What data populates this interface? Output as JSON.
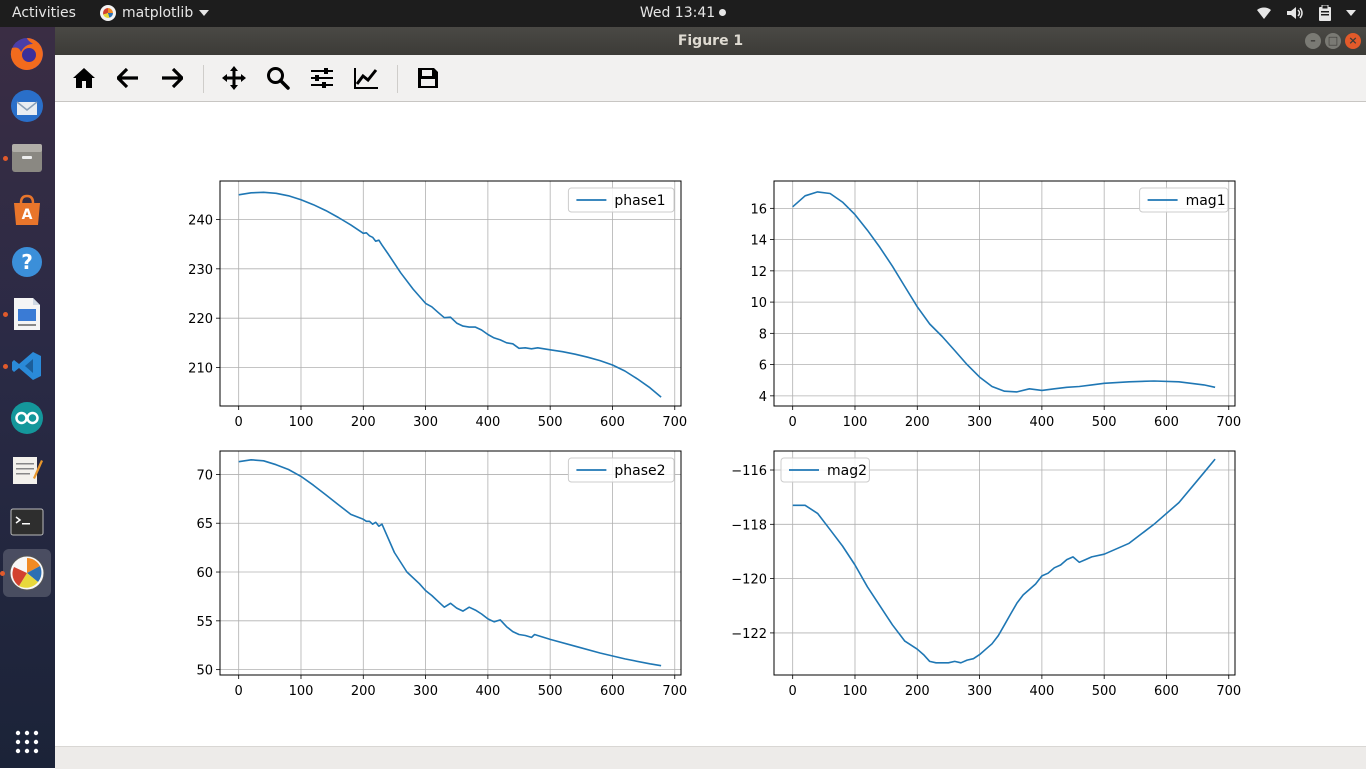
{
  "topbar": {
    "activities": "Activities",
    "app_name": "matplotlib",
    "clock": "Wed 13:41"
  },
  "launcher": {
    "apps": [
      "firefox-icon",
      "thunderbird-icon",
      "files-icon",
      "software-center-icon",
      "help-icon",
      "writer-icon",
      "vscode-icon",
      "arduino-icon",
      "text-editor-icon",
      "terminal-icon",
      "matplotlib-icon",
      "app-grid-icon"
    ]
  },
  "window": {
    "title": "Figure 1"
  },
  "toolbar": {
    "buttons": [
      "home",
      "back",
      "forward",
      "pan",
      "zoom",
      "subplots",
      "customize",
      "save"
    ]
  },
  "colors": {
    "line": "#1f77b4",
    "grid": "#b0b0b0",
    "topbar": "#1d1d1d",
    "titlebar": "#3c3b37"
  },
  "chart_data": [
    {
      "type": "line",
      "legend": "upper right",
      "grid": true,
      "xlim": [
        -30,
        710
      ],
      "ylim": [
        202.2,
        247.8
      ],
      "xticks": [
        0,
        100,
        200,
        300,
        400,
        500,
        600,
        700
      ],
      "yticks": [
        210,
        220,
        230,
        240
      ],
      "series": [
        {
          "name": "phase1",
          "x": [
            0,
            20,
            40,
            60,
            80,
            100,
            120,
            140,
            160,
            180,
            200,
            205,
            210,
            215,
            220,
            225,
            230,
            240,
            260,
            280,
            300,
            310,
            320,
            330,
            340,
            350,
            360,
            370,
            380,
            390,
            400,
            410,
            420,
            430,
            440,
            450,
            460,
            470,
            480,
            500,
            520,
            540,
            560,
            580,
            600,
            620,
            640,
            660,
            678
          ],
          "y": [
            245,
            245.4,
            245.5,
            245.3,
            244.8,
            244.0,
            243.0,
            241.8,
            240.4,
            238.9,
            237.2,
            237.3,
            236.7,
            236.4,
            235.6,
            235.8,
            234.8,
            233.0,
            229.2,
            225.9,
            223.0,
            222.3,
            221.2,
            220.1,
            220.2,
            219.0,
            218.4,
            218.2,
            218.2,
            217.6,
            216.7,
            216.0,
            215.6,
            215.0,
            214.8,
            213.9,
            214.0,
            213.8,
            214.0,
            213.6,
            213.2,
            212.7,
            212.1,
            211.4,
            210.5,
            209.3,
            207.7,
            205.9,
            204.0
          ]
        }
      ]
    },
    {
      "type": "line",
      "legend": "upper right",
      "grid": true,
      "xlim": [
        -30,
        710
      ],
      "ylim": [
        3.35,
        17.75
      ],
      "xticks": [
        0,
        100,
        200,
        300,
        400,
        500,
        600,
        700
      ],
      "yticks": [
        4,
        6,
        8,
        10,
        12,
        14,
        16
      ],
      "series": [
        {
          "name": "mag1",
          "x": [
            0,
            20,
            40,
            60,
            80,
            100,
            120,
            140,
            160,
            180,
            200,
            220,
            240,
            260,
            280,
            300,
            320,
            340,
            360,
            380,
            400,
            420,
            440,
            460,
            480,
            500,
            540,
            580,
            620,
            660,
            678
          ],
          "y": [
            16.1,
            16.8,
            17.05,
            16.95,
            16.4,
            15.6,
            14.6,
            13.5,
            12.3,
            11.0,
            9.7,
            8.6,
            7.8,
            6.9,
            6.0,
            5.2,
            4.6,
            4.3,
            4.25,
            4.45,
            4.35,
            4.45,
            4.55,
            4.6,
            4.7,
            4.8,
            4.9,
            4.95,
            4.9,
            4.7,
            4.55
          ]
        }
      ]
    },
    {
      "type": "line",
      "legend": "upper right",
      "grid": true,
      "xlim": [
        -30,
        710
      ],
      "ylim": [
        49.45,
        72.4
      ],
      "xticks": [
        0,
        100,
        200,
        300,
        400,
        500,
        600,
        700
      ],
      "yticks": [
        50,
        55,
        60,
        65,
        70
      ],
      "series": [
        {
          "name": "phase2",
          "x": [
            0,
            20,
            40,
            60,
            80,
            100,
            120,
            140,
            160,
            180,
            200,
            205,
            210,
            215,
            220,
            225,
            230,
            250,
            270,
            290,
            300,
            310,
            320,
            330,
            340,
            350,
            360,
            370,
            380,
            390,
            400,
            410,
            420,
            430,
            440,
            450,
            460,
            470,
            475,
            480,
            500,
            540,
            580,
            620,
            660,
            678
          ],
          "y": [
            71.3,
            71.5,
            71.4,
            71.0,
            70.5,
            69.8,
            68.9,
            67.9,
            66.9,
            65.9,
            65.4,
            65.2,
            65.2,
            64.9,
            65.1,
            64.7,
            64.9,
            62.0,
            60.0,
            58.8,
            58.1,
            57.6,
            57.0,
            56.4,
            56.8,
            56.3,
            56.0,
            56.4,
            56.1,
            55.7,
            55.2,
            54.9,
            55.1,
            54.4,
            53.9,
            53.6,
            53.5,
            53.3,
            53.6,
            53.5,
            53.1,
            52.4,
            51.7,
            51.1,
            50.6,
            50.4
          ]
        }
      ]
    },
    {
      "type": "line",
      "legend": "upper left",
      "grid": true,
      "xlim": [
        -30,
        710
      ],
      "ylim": [
        -123.55,
        -115.3
      ],
      "xticks": [
        0,
        100,
        200,
        300,
        400,
        500,
        600,
        700
      ],
      "yticks": [
        -122,
        -120,
        -118,
        -116
      ],
      "series": [
        {
          "name": "mag2",
          "x": [
            0,
            20,
            40,
            60,
            80,
            100,
            120,
            140,
            160,
            180,
            200,
            210,
            220,
            230,
            240,
            250,
            260,
            270,
            280,
            290,
            300,
            310,
            320,
            330,
            340,
            350,
            360,
            370,
            380,
            390,
            400,
            410,
            420,
            430,
            440,
            450,
            460,
            470,
            480,
            500,
            540,
            580,
            620,
            660,
            678
          ],
          "y": [
            -117.3,
            -117.3,
            -117.6,
            -118.2,
            -118.8,
            -119.5,
            -120.3,
            -121.0,
            -121.7,
            -122.3,
            -122.6,
            -122.8,
            -123.05,
            -123.1,
            -123.1,
            -123.1,
            -123.05,
            -123.1,
            -123.0,
            -122.95,
            -122.8,
            -122.6,
            -122.4,
            -122.1,
            -121.7,
            -121.3,
            -120.9,
            -120.6,
            -120.4,
            -120.2,
            -119.9,
            -119.8,
            -119.6,
            -119.5,
            -119.3,
            -119.2,
            -119.4,
            -119.3,
            -119.2,
            -119.1,
            -118.7,
            -118.0,
            -117.2,
            -116.1,
            -115.6
          ]
        }
      ]
    }
  ]
}
